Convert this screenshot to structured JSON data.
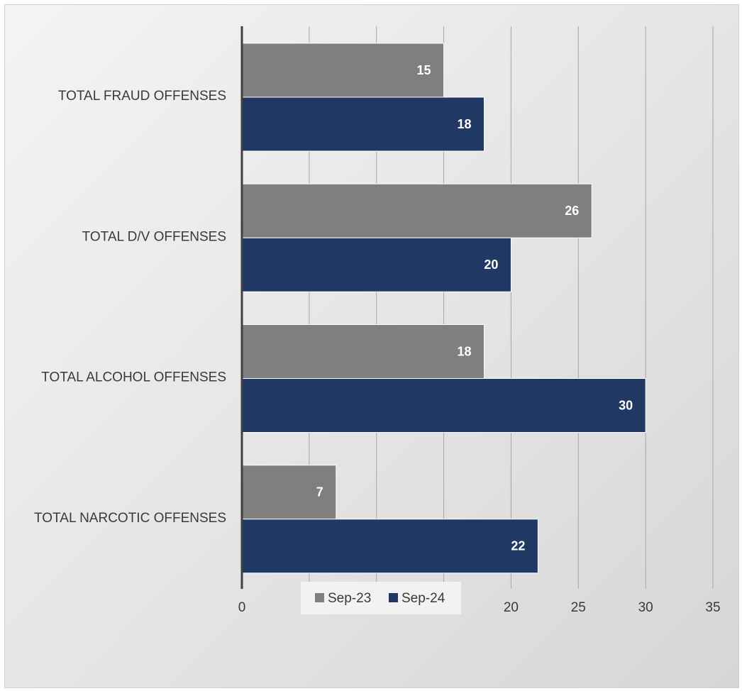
{
  "chart_data": {
    "type": "bar",
    "orientation": "horizontal",
    "categories": [
      "TOTAL FRAUD OFFENSES",
      "TOTAL D/V OFFENSES",
      "TOTAL ALCOHOL OFFENSES",
      "TOTAL NARCOTIC OFFENSES"
    ],
    "series": [
      {
        "name": "Sep-23",
        "color": "#7f7f7f",
        "values": [
          15,
          26,
          18,
          7
        ]
      },
      {
        "name": "Sep-24",
        "color": "#1f3864",
        "values": [
          18,
          20,
          30,
          22
        ]
      }
    ],
    "xlim": [
      0,
      35
    ],
    "xticks": [
      0,
      5,
      10,
      15,
      20,
      25,
      30,
      35
    ],
    "grid": true,
    "data_labels": true,
    "legend_position": "bottom"
  }
}
